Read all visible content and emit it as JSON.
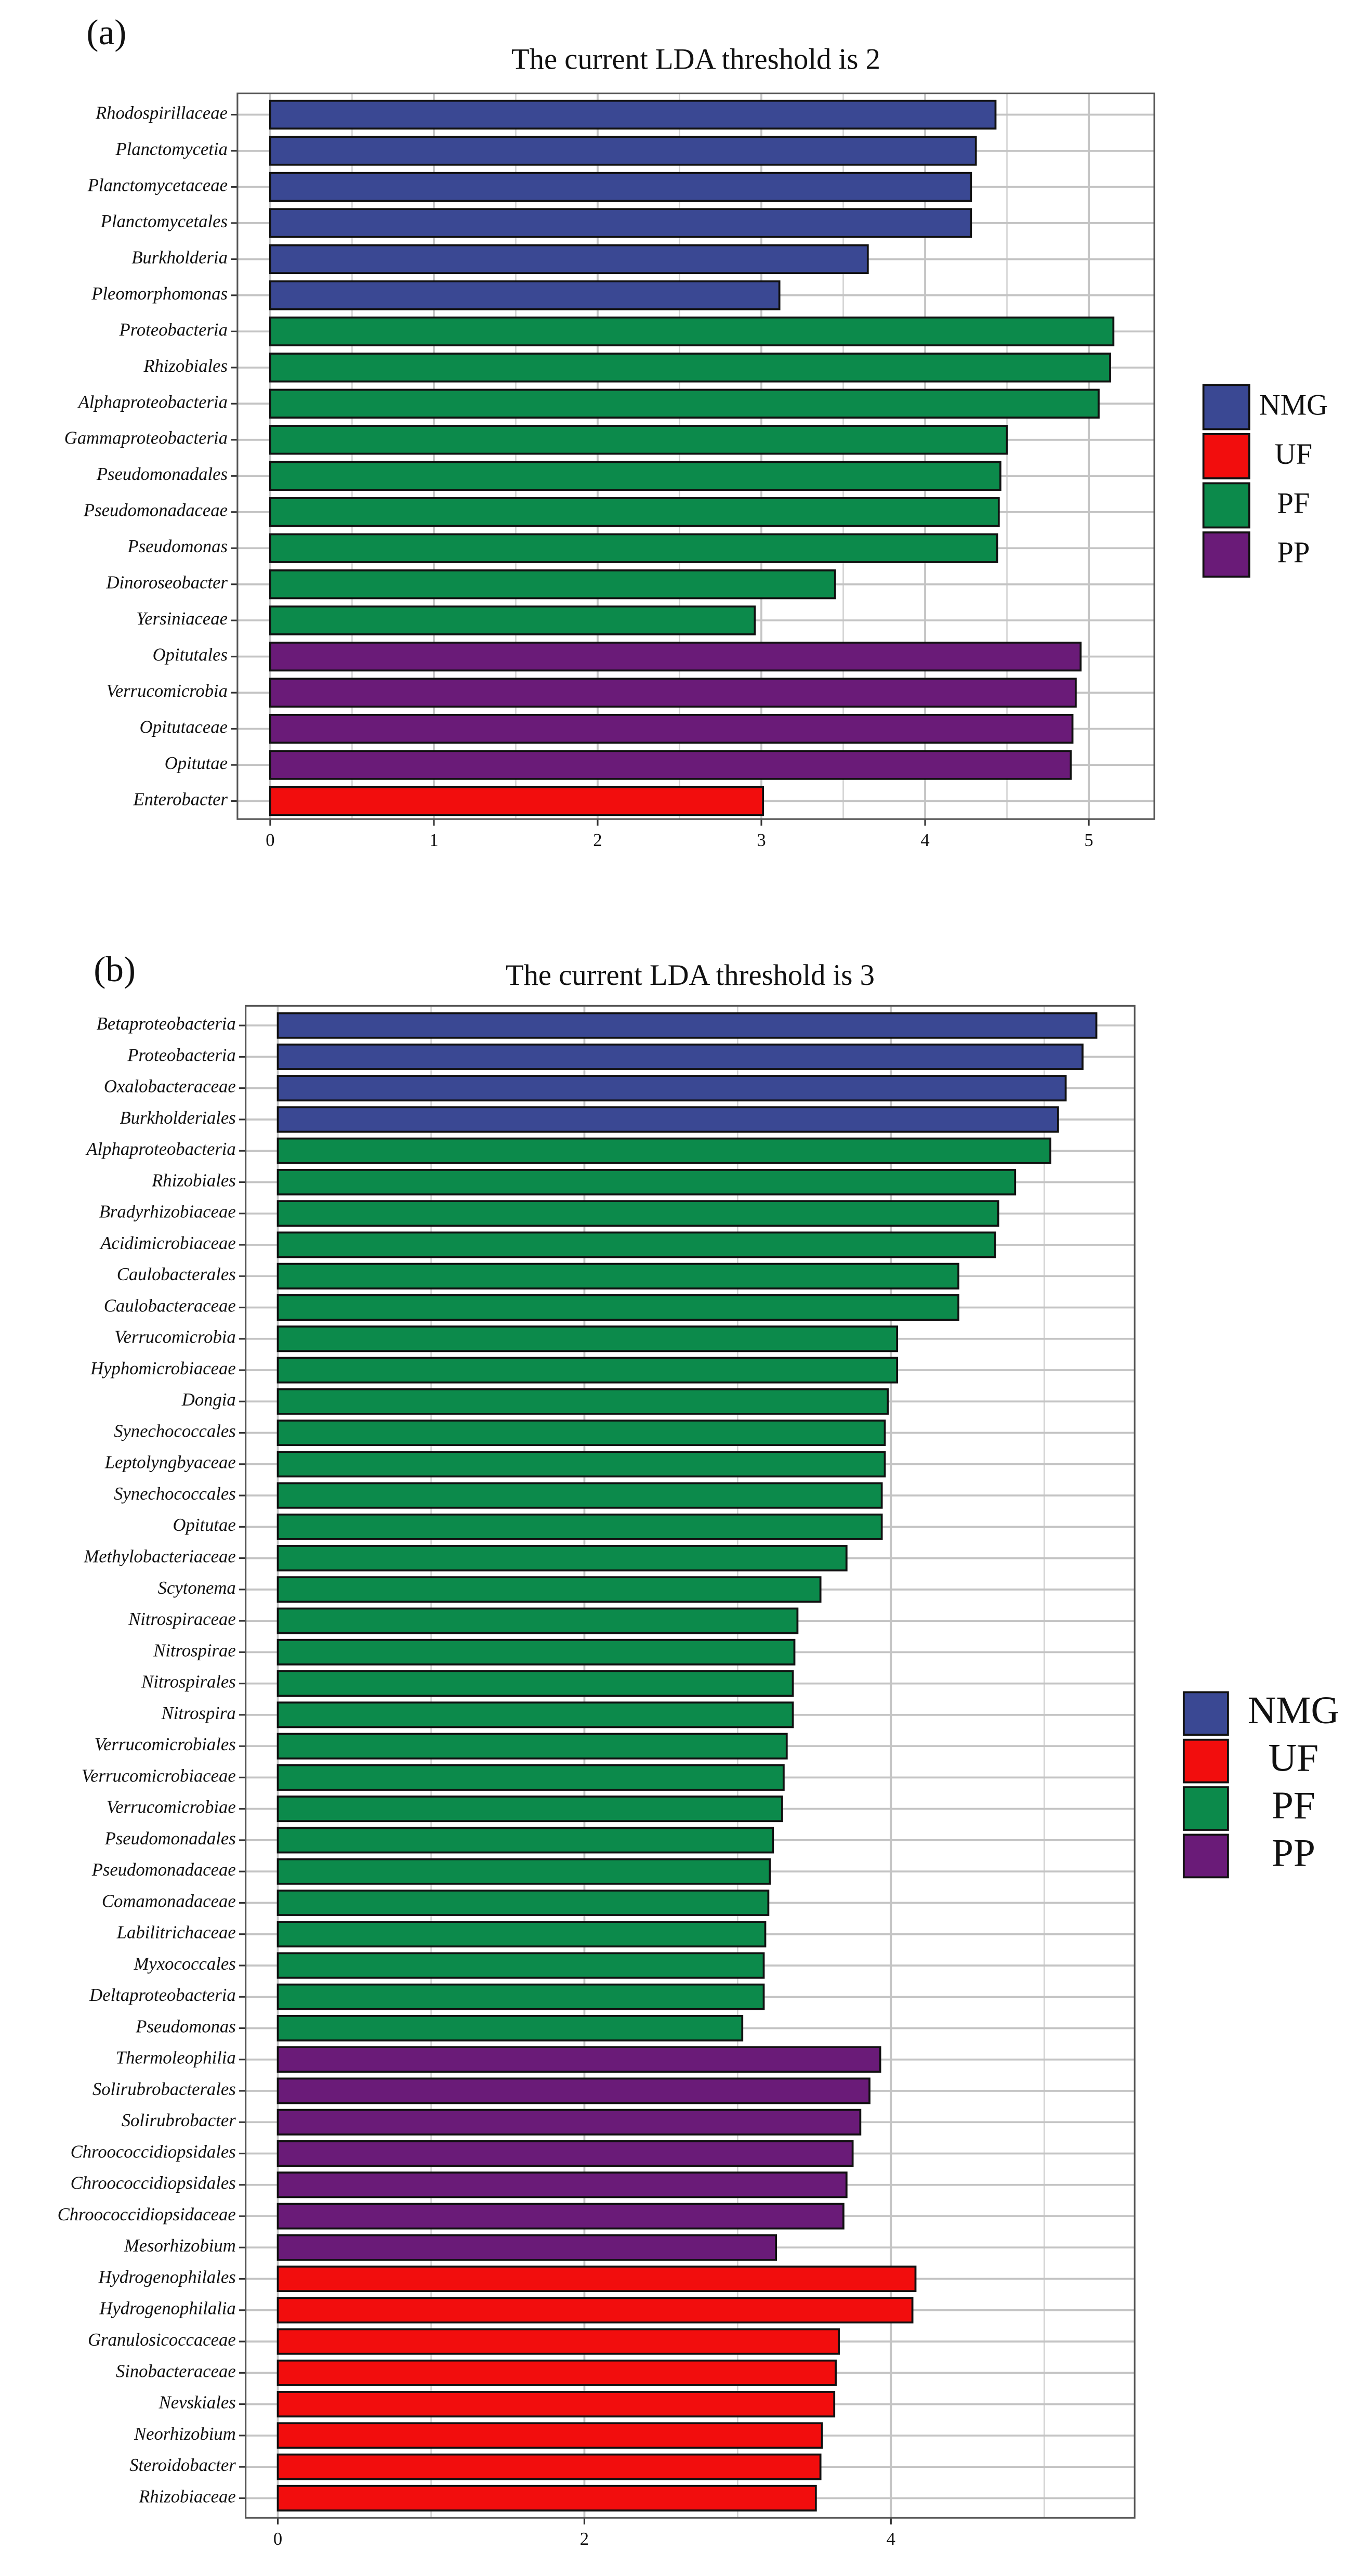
{
  "chart_data": [
    {
      "type": "barh",
      "panel_label": "(a)",
      "title": "The current LDA threshold is 2",
      "xlim": [
        -0.2,
        5.4
      ],
      "xticks": [
        0,
        1,
        2,
        3,
        4,
        5
      ],
      "xgrid_minor": [
        0.5,
        1.5,
        2.5,
        3.5,
        4.5
      ],
      "grid": true,
      "legend": "right",
      "row_order": [
        0,
        2,
        3,
        1
      ],
      "series": [
        {
          "name": "NMG",
          "color": "#3a4893",
          "categories": [
            "Rhodospirillaceae",
            "Planctomycetia",
            "Planctomycetaceae",
            "Planctomycetales",
            "Burkholderia",
            "Pleomorphomonas"
          ],
          "values": [
            4.43,
            4.31,
            4.28,
            4.28,
            3.65,
            3.11
          ]
        },
        {
          "name": "UF",
          "color": "#f20d0d",
          "categories": [
            "Enterobacter"
          ],
          "values": [
            3.01
          ]
        },
        {
          "name": "PF",
          "color": "#0c8a4b",
          "categories": [
            "Proteobacteria",
            "Rhizobiales",
            "Alphaproteobacteria",
            "Gammaproteobacteria",
            "Pseudomonadales",
            "Pseudomonadaceae",
            "Pseudomonas",
            "Dinoroseobacter",
            "Yersiniaceae"
          ],
          "values": [
            5.15,
            5.13,
            5.06,
            4.5,
            4.46,
            4.45,
            4.44,
            3.45,
            2.96
          ]
        },
        {
          "name": "PP",
          "color": "#6a1b78",
          "categories": [
            "Opitutales",
            "Verrucomicrobia",
            "Opitutaceae",
            "Opitutae"
          ],
          "values": [
            4.95,
            4.92,
            4.9,
            4.89
          ]
        }
      ]
    },
    {
      "type": "barh",
      "panel_label": "(b)",
      "title": "The current LDA threshold is 3",
      "xlim": [
        -0.21,
        5.59
      ],
      "xticks": [
        0,
        2,
        4
      ],
      "xgrid_minor": [
        1,
        3,
        5
      ],
      "grid": true,
      "legend": "right",
      "row_order": [
        0,
        2,
        3,
        1
      ],
      "series": [
        {
          "name": "NMG",
          "color": "#3a4893",
          "categories": [
            "Betaproteobacteria",
            "Proteobacteria",
            "Oxalobacteraceae",
            "Burkholderiales"
          ],
          "values": [
            5.34,
            5.25,
            5.14,
            5.09
          ]
        },
        {
          "name": "UF",
          "color": "#f20d0d",
          "categories": [
            "Hydrogenophilales",
            "Hydrogenophilalia",
            "Granulosicoccaceae",
            "Sinobacteraceae",
            "Nevskiales",
            "Neorhizobium",
            "Steroidobacter",
            "Rhizobiaceae"
          ],
          "values": [
            4.16,
            4.14,
            3.66,
            3.64,
            3.63,
            3.55,
            3.54,
            3.51
          ]
        },
        {
          "name": "PF",
          "color": "#0c8a4b",
          "categories": [
            "Alphaproteobacteria",
            "Rhizobiales",
            "Bradyrhizobiaceae",
            "Acidimicrobiaceae",
            "Caulobacterales",
            "Caulobacteraceae",
            "Verrucomicrobia",
            "Hyphomicrobiaceae",
            "Dongia",
            "Synechococcales",
            "Leptolyngbyaceae",
            "Synechococcales",
            "Opitutae",
            "Methylobacteriaceae",
            "Scytonema",
            "Nitrospiraceae",
            "Nitrospirae",
            "Nitrospirales",
            "Nitrospira",
            "Verrucomicrobiales",
            "Verrucomicrobiaceae",
            "Verrucomicrobiae",
            "Pseudomonadales",
            "Pseudomonadaceae",
            "Comamonadaceae",
            "Labilitrichaceae",
            "Myxococcales",
            "Deltaproteobacteria",
            "Pseudomonas"
          ],
          "values": [
            5.04,
            4.81,
            4.7,
            4.68,
            4.44,
            4.44,
            4.04,
            4.04,
            3.98,
            3.96,
            3.96,
            3.94,
            3.94,
            3.71,
            3.54,
            3.39,
            3.37,
            3.36,
            3.36,
            3.32,
            3.3,
            3.29,
            3.23,
            3.21,
            3.2,
            3.18,
            3.17,
            3.17,
            3.03
          ]
        },
        {
          "name": "PP",
          "color": "#6a1b78",
          "categories": [
            "Thermoleophilia",
            "Solirubrobacterales",
            "Solirubrobacter",
            "Chroococcidiopsidales",
            "Chroococcidiopsidales",
            "Chroococcidiopsidaceae",
            "Mesorhizobium"
          ],
          "values": [
            3.93,
            3.86,
            3.8,
            3.75,
            3.71,
            3.69,
            3.25
          ]
        }
      ]
    }
  ]
}
